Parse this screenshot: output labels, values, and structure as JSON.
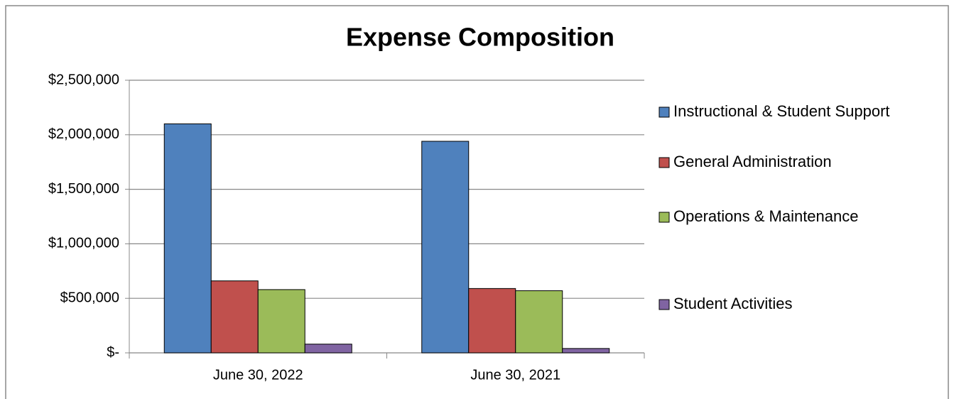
{
  "chart_data": {
    "type": "bar",
    "title": "Expense Composition",
    "categories": [
      "June 30, 2022",
      "June 30, 2021"
    ],
    "series": [
      {
        "name": "Instructional & Student Support",
        "color": "#4f81bd",
        "values": [
          2100000,
          1940000
        ]
      },
      {
        "name": "General Administration",
        "color": "#c0504d",
        "values": [
          660000,
          590000
        ]
      },
      {
        "name": "Operations & Maintenance",
        "color": "#9bbb59",
        "values": [
          580000,
          570000
        ]
      },
      {
        "name": "Student Activities",
        "color": "#8064a2",
        "values": [
          80000,
          40000
        ]
      }
    ],
    "ylim": [
      0,
      2500000
    ],
    "yticks": [
      {
        "value": 0,
        "label": "$-"
      },
      {
        "value": 500000,
        "label": "$500,000"
      },
      {
        "value": 1000000,
        "label": "$1,000,000"
      },
      {
        "value": 1500000,
        "label": "$1,500,000"
      },
      {
        "value": 2000000,
        "label": "$2,000,000"
      },
      {
        "value": 2500000,
        "label": "$2,500,000"
      }
    ],
    "grid": true,
    "legend": "right"
  }
}
